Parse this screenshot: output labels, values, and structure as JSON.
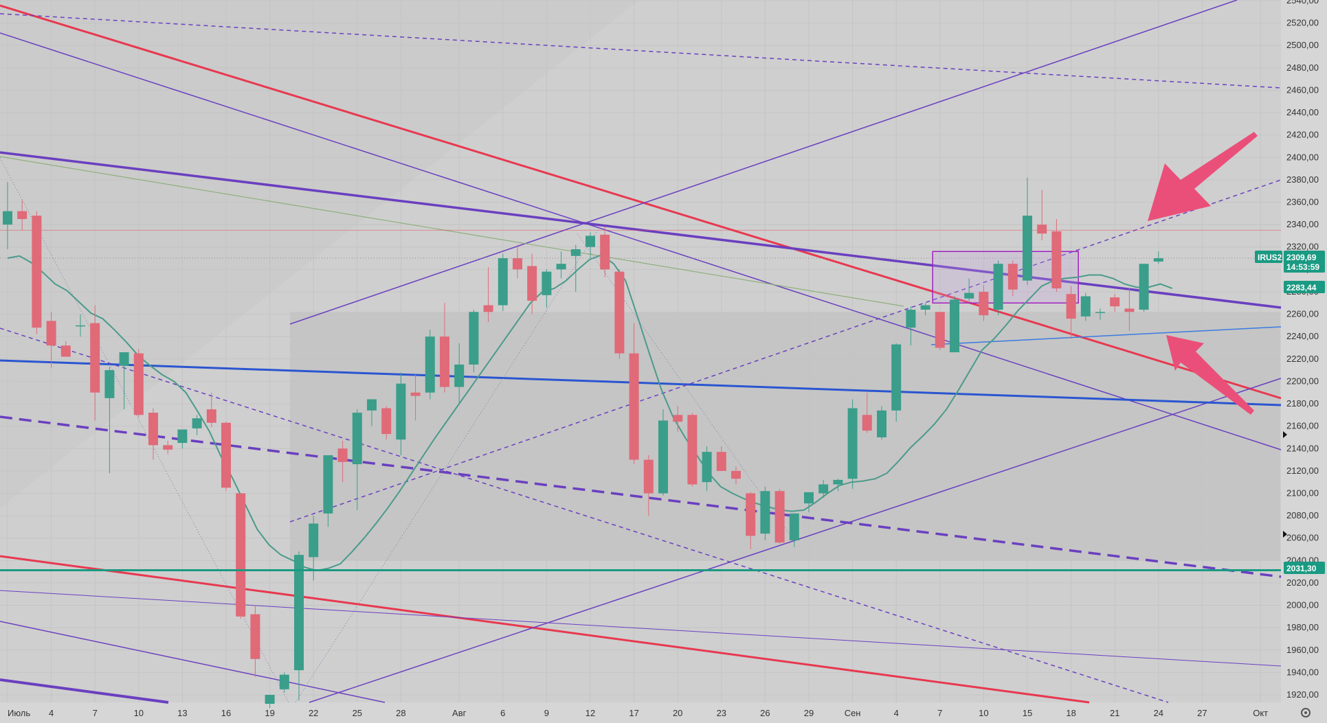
{
  "colors": {
    "background": "#cfcfcf",
    "grid": "#c4c4c4",
    "up": "#3a9e8a",
    "down": "#e06a78",
    "red_line": "#e8384f",
    "purple_line": "#6a3fc0",
    "blue_line": "#2a55d0",
    "teal_line": "#1a9a82",
    "ema": "#4a9a8a",
    "arrow": "#ea4f7a",
    "badge": "#1a9a82"
  },
  "ticker": "IRUS2",
  "price_badges": {
    "last": "2309,69",
    "countdown": "14:53:59",
    "level_mid": "2283,44",
    "level_low": "2031,30"
  },
  "chart_data": {
    "type": "candlestick",
    "y_ticks": [
      "2540,00",
      "2520,00",
      "2500,00",
      "2480,00",
      "2460,00",
      "2440,00",
      "2420,00",
      "2400,00",
      "2380,00",
      "2360,00",
      "2340,00",
      "2320,00",
      "2300,00",
      "2280,00",
      "2260,00",
      "2240,00",
      "2220,00",
      "2200,00",
      "2180,00",
      "2160,00",
      "2140,00",
      "2120,00",
      "2100,00",
      "2080,00",
      "2060,00",
      "2040,00",
      "2020,00",
      "2000,00",
      "1980,00",
      "1960,00",
      "1940,00",
      "1920,00"
    ],
    "ylim": [
      1912,
      2545
    ],
    "x_ticks": [
      {
        "label": "Июль",
        "i": 0
      },
      {
        "label": "4",
        "i": 3
      },
      {
        "label": "7",
        "i": 6
      },
      {
        "label": "10",
        "i": 9
      },
      {
        "label": "13",
        "i": 12
      },
      {
        "label": "16",
        "i": 15
      },
      {
        "label": "19",
        "i": 18
      },
      {
        "label": "22",
        "i": 21
      },
      {
        "label": "25",
        "i": 24
      },
      {
        "label": "28",
        "i": 27
      },
      {
        "label": "Авг",
        "i": 31
      },
      {
        "label": "6",
        "i": 34
      },
      {
        "label": "9",
        "i": 37
      },
      {
        "label": "12",
        "i": 40
      },
      {
        "label": "17",
        "i": 43
      },
      {
        "label": "20",
        "i": 46
      },
      {
        "label": "23",
        "i": 49
      },
      {
        "label": "26",
        "i": 52
      },
      {
        "label": "29",
        "i": 55
      },
      {
        "label": "Сен",
        "i": 58
      },
      {
        "label": "4",
        "i": 61
      },
      {
        "label": "7",
        "i": 64
      },
      {
        "label": "10",
        "i": 67
      },
      {
        "label": "15",
        "i": 70
      },
      {
        "label": "18",
        "i": 73
      },
      {
        "label": "21",
        "i": 76
      },
      {
        "label": "24",
        "i": 79
      },
      {
        "label": "27",
        "i": 82
      },
      {
        "label": "Окт",
        "i": 86
      }
    ],
    "candles": [
      {
        "o": 2340,
        "h": 2378,
        "l": 2318,
        "c": 2352
      },
      {
        "o": 2352,
        "h": 2362,
        "l": 2335,
        "c": 2345
      },
      {
        "o": 2348,
        "h": 2352,
        "l": 2242,
        "c": 2248
      },
      {
        "o": 2254,
        "h": 2262,
        "l": 2212,
        "c": 2232
      },
      {
        "o": 2232,
        "h": 2236,
        "l": 2222,
        "c": 2222
      },
      {
        "o": 2250,
        "h": 2260,
        "l": 2240,
        "c": 2250
      },
      {
        "o": 2252,
        "h": 2268,
        "l": 2165,
        "c": 2190
      },
      {
        "o": 2185,
        "h": 2213,
        "l": 2118,
        "c": 2210
      },
      {
        "o": 2214,
        "h": 2226,
        "l": 2175,
        "c": 2226
      },
      {
        "o": 2225,
        "h": 2229,
        "l": 2168,
        "c": 2170
      },
      {
        "o": 2172,
        "h": 2176,
        "l": 2130,
        "c": 2143
      },
      {
        "o": 2143,
        "h": 2147,
        "l": 2135,
        "c": 2139
      },
      {
        "o": 2145,
        "h": 2157,
        "l": 2140,
        "c": 2157
      },
      {
        "o": 2158,
        "h": 2170,
        "l": 2152,
        "c": 2167
      },
      {
        "o": 2175,
        "h": 2190,
        "l": 2159,
        "c": 2163
      },
      {
        "o": 2163,
        "h": 2164,
        "l": 2102,
        "c": 2105
      },
      {
        "o": 2100,
        "h": 2100,
        "l": 1988,
        "c": 1990
      },
      {
        "o": 1992,
        "h": 2000,
        "l": 1936,
        "c": 1952
      },
      {
        "o": 1912,
        "h": 1920,
        "l": 1908,
        "c": 1920
      },
      {
        "o": 1925,
        "h": 1940,
        "l": 1922,
        "c": 1938
      },
      {
        "o": 1942,
        "h": 2048,
        "l": 1915,
        "c": 2045
      },
      {
        "o": 2043,
        "h": 2080,
        "l": 2022,
        "c": 2073
      },
      {
        "o": 2082,
        "h": 2134,
        "l": 2070,
        "c": 2134
      },
      {
        "o": 2140,
        "h": 2147,
        "l": 2110,
        "c": 2128
      },
      {
        "o": 2126,
        "h": 2175,
        "l": 2085,
        "c": 2172
      },
      {
        "o": 2174,
        "h": 2184,
        "l": 2160,
        "c": 2184
      },
      {
        "o": 2176,
        "h": 2178,
        "l": 2148,
        "c": 2153
      },
      {
        "o": 2148,
        "h": 2208,
        "l": 2134,
        "c": 2198
      },
      {
        "o": 2190,
        "h": 2206,
        "l": 2165,
        "c": 2187
      },
      {
        "o": 2190,
        "h": 2246,
        "l": 2184,
        "c": 2240
      },
      {
        "o": 2240,
        "h": 2270,
        "l": 2190,
        "c": 2195
      },
      {
        "o": 2195,
        "h": 2234,
        "l": 2180,
        "c": 2215
      },
      {
        "o": 2215,
        "h": 2264,
        "l": 2208,
        "c": 2262
      },
      {
        "o": 2268,
        "h": 2302,
        "l": 2253,
        "c": 2262
      },
      {
        "o": 2268,
        "h": 2314,
        "l": 2263,
        "c": 2310
      },
      {
        "o": 2310,
        "h": 2322,
        "l": 2292,
        "c": 2300
      },
      {
        "o": 2303,
        "h": 2314,
        "l": 2260,
        "c": 2272
      },
      {
        "o": 2277,
        "h": 2300,
        "l": 2266,
        "c": 2298
      },
      {
        "o": 2300,
        "h": 2316,
        "l": 2292,
        "c": 2305
      },
      {
        "o": 2312,
        "h": 2322,
        "l": 2280,
        "c": 2318
      },
      {
        "o": 2320,
        "h": 2333,
        "l": 2310,
        "c": 2330
      },
      {
        "o": 2331,
        "h": 2338,
        "l": 2293,
        "c": 2300
      },
      {
        "o": 2298,
        "h": 2300,
        "l": 2220,
        "c": 2225
      },
      {
        "o": 2225,
        "h": 2252,
        "l": 2126,
        "c": 2130
      },
      {
        "o": 2130,
        "h": 2134,
        "l": 2080,
        "c": 2100
      },
      {
        "o": 2100,
        "h": 2175,
        "l": 2098,
        "c": 2165
      },
      {
        "o": 2170,
        "h": 2178,
        "l": 2155,
        "c": 2164
      },
      {
        "o": 2170,
        "h": 2172,
        "l": 2106,
        "c": 2108
      },
      {
        "o": 2110,
        "h": 2142,
        "l": 2102,
        "c": 2137
      },
      {
        "o": 2137,
        "h": 2142,
        "l": 2120,
        "c": 2120
      },
      {
        "o": 2120,
        "h": 2124,
        "l": 2108,
        "c": 2113
      },
      {
        "o": 2100,
        "h": 2101,
        "l": 2050,
        "c": 2062
      },
      {
        "o": 2064,
        "h": 2106,
        "l": 2058,
        "c": 2102
      },
      {
        "o": 2102,
        "h": 2104,
        "l": 2055,
        "c": 2056
      },
      {
        "o": 2058,
        "h": 2082,
        "l": 2052,
        "c": 2082
      },
      {
        "o": 2091,
        "h": 2099,
        "l": 2083,
        "c": 2101
      },
      {
        "o": 2100,
        "h": 2112,
        "l": 2096,
        "c": 2108
      },
      {
        "o": 2108,
        "h": 2113,
        "l": 2102,
        "c": 2112
      },
      {
        "o": 2113,
        "h": 2184,
        "l": 2104,
        "c": 2176
      },
      {
        "o": 2170,
        "h": 2190,
        "l": 2154,
        "c": 2156
      },
      {
        "o": 2150,
        "h": 2178,
        "l": 2148,
        "c": 2174
      },
      {
        "o": 2174,
        "h": 2234,
        "l": 2164,
        "c": 2233
      },
      {
        "o": 2248,
        "h": 2267,
        "l": 2232,
        "c": 2264
      },
      {
        "o": 2264,
        "h": 2270,
        "l": 2259,
        "c": 2268
      },
      {
        "o": 2262,
        "h": 2262,
        "l": 2228,
        "c": 2230
      },
      {
        "o": 2226,
        "h": 2276,
        "l": 2226,
        "c": 2273
      },
      {
        "o": 2274,
        "h": 2292,
        "l": 2272,
        "c": 2279
      },
      {
        "o": 2280,
        "h": 2286,
        "l": 2254,
        "c": 2259
      },
      {
        "o": 2264,
        "h": 2308,
        "l": 2259,
        "c": 2305
      },
      {
        "o": 2305,
        "h": 2308,
        "l": 2276,
        "c": 2282
      },
      {
        "o": 2290,
        "h": 2382,
        "l": 2286,
        "c": 2348
      },
      {
        "o": 2340,
        "h": 2371,
        "l": 2326,
        "c": 2332
      },
      {
        "o": 2334,
        "h": 2345,
        "l": 2280,
        "c": 2283
      },
      {
        "o": 2278,
        "h": 2285,
        "l": 2238,
        "c": 2256
      },
      {
        "o": 2258,
        "h": 2279,
        "l": 2254,
        "c": 2276
      },
      {
        "o": 2262,
        "h": 2265,
        "l": 2255,
        "c": 2262
      },
      {
        "o": 2275,
        "h": 2278,
        "l": 2262,
        "c": 2267
      },
      {
        "o": 2265,
        "h": 2283,
        "l": 2245,
        "c": 2262
      },
      {
        "o": 2264,
        "h": 2305,
        "l": 2262,
        "c": 2305
      },
      {
        "o": 2307,
        "h": 2316,
        "l": 2305,
        "c": 2310
      }
    ],
    "ema": [
      2310,
      2312,
      2306,
      2297,
      2287,
      2281,
      2271,
      2261,
      2256,
      2246,
      2235,
      2223,
      2214,
      2206,
      2200,
      2190,
      2173,
      2155,
      2132,
      2112,
      2090,
      2068,
      2054,
      2045,
      2040,
      2034,
      2031,
      2033,
      2037,
      2048,
      2060,
      2073,
      2087,
      2102,
      2118,
      2134,
      2150,
      2165,
      2180,
      2195,
      2210,
      2225,
      2240,
      2255,
      2270,
      2280,
      2283,
      2290,
      2300,
      2309,
      2313,
      2305,
      2290,
      2258,
      2225,
      2193,
      2168,
      2150,
      2134,
      2118,
      2106,
      2100,
      2095,
      2091,
      2088,
      2085,
      2084,
      2085,
      2092,
      2100,
      2107,
      2110,
      2111,
      2113,
      2118,
      2129,
      2141,
      2151,
      2162,
      2175,
      2192,
      2210,
      2228,
      2238,
      2250,
      2263,
      2274,
      2285,
      2290,
      2292,
      2293,
      2295,
      2295,
      2292,
      2287,
      2284,
      2284,
      2287,
      2283
    ],
    "levels": {
      "horizontal_red": 2335,
      "horizontal_teal": 2031.3,
      "dotted_last": 2310
    },
    "rectangle": {
      "i0": 63.5,
      "i1": 73.5,
      "top": 2316,
      "bottom": 2270
    }
  }
}
